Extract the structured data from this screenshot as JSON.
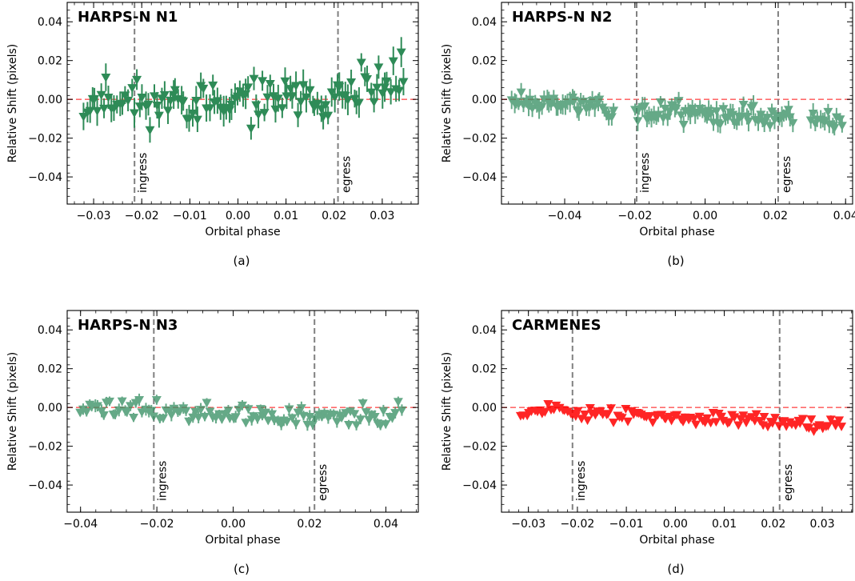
{
  "figure": {
    "captions": [
      "(a)",
      "(b)",
      "(c)",
      "(d)"
    ]
  },
  "chart_data": [
    {
      "type": "scatter",
      "title": "HARPS-N N1",
      "xlabel": "Orbital phase",
      "ylabel": "Relative Shift (pixels)",
      "xlim": [
        -0.0355,
        0.0375
      ],
      "ylim": [
        -0.054,
        0.05
      ],
      "xticks": [
        -0.03,
        -0.02,
        -0.01,
        0.0,
        0.01,
        0.02,
        0.03
      ],
      "xtick_labels": [
        "−0.03",
        "−0.02",
        "−0.01",
        "0.00",
        "0.01",
        "0.02",
        "0.03"
      ],
      "yticks": [
        -0.04,
        -0.02,
        0.0,
        0.02,
        0.04
      ],
      "ytick_labels": [
        "−0.04",
        "−0.02",
        "0.00",
        "0.02",
        "0.04"
      ],
      "ingress_phase": -0.0215,
      "egress_phase": 0.0208,
      "ingress_label": "ingress",
      "egress_label": "egress",
      "marker_color": "#2e8b57",
      "marker_opacity": 1.0,
      "reference_line_color": "#ff6b6b",
      "x_range": [
        -0.032,
        0.0345
      ],
      "n_points": 116,
      "trend": [
        [
          -0.032,
          0.0
        ],
        [
          0.0,
          -0.002
        ],
        [
          0.024,
          0.002
        ],
        [
          0.0345,
          0.01
        ]
      ],
      "scatter_amp": 0.0085,
      "err": 0.006,
      "seed": 11
    },
    {
      "type": "scatter",
      "title": "HARPS-N N2",
      "xlabel": "Orbital phase",
      "ylabel": "Relative Shift (pixels)",
      "xlim": [
        -0.058,
        0.042
      ],
      "ylim": [
        -0.054,
        0.05
      ],
      "xticks": [
        -0.04,
        -0.02,
        0.0,
        0.02,
        0.04
      ],
      "xtick_labels": [
        "−0.04",
        "−0.02",
        "0.00",
        "0.02",
        "0.04"
      ],
      "yticks": [
        -0.04,
        -0.02,
        0.0,
        0.02,
        0.04
      ],
      "ytick_labels": [
        "−0.04",
        "−0.02",
        "0.00",
        "0.02",
        "0.04"
      ],
      "ingress_phase": -0.0195,
      "egress_phase": 0.0208,
      "ingress_label": "ingress",
      "egress_label": "egress",
      "marker_color": "#3a9166",
      "marker_opacity": 0.78,
      "reference_line_color": "#ff6b6b",
      "segments": [
        [
          -0.055,
          -0.026
        ],
        [
          -0.02,
          0.025
        ],
        [
          0.03,
          0.039
        ]
      ],
      "n_points": 128,
      "trend": [
        [
          -0.055,
          0.0
        ],
        [
          -0.02,
          -0.005
        ],
        [
          0.025,
          -0.01
        ],
        [
          0.039,
          -0.012
        ]
      ],
      "scatter_amp": 0.0045,
      "err": 0.004,
      "seed": 23
    },
    {
      "type": "scatter",
      "title": "HARPS-N N3",
      "xlabel": "Orbital phase",
      "ylabel": "Relative Shift (pixels)",
      "xlim": [
        -0.0435,
        0.0485
      ],
      "ylim": [
        -0.054,
        0.05
      ],
      "xticks": [
        -0.04,
        -0.02,
        0.0,
        0.02,
        0.04
      ],
      "xtick_labels": [
        "−0.04",
        "−0.02",
        "0.00",
        "0.02",
        "0.04"
      ],
      "yticks": [
        -0.04,
        -0.02,
        0.0,
        0.02,
        0.04
      ],
      "ytick_labels": [
        "−0.04",
        "−0.02",
        "0.00",
        "0.02",
        "0.04"
      ],
      "ingress_phase": -0.0208,
      "egress_phase": 0.0213,
      "ingress_label": "ingress",
      "egress_label": "egress",
      "marker_color": "#3a9166",
      "marker_opacity": 0.78,
      "reference_line_color": "#ff6b6b",
      "x_range": [
        -0.04,
        0.044
      ],
      "n_points": 110,
      "trend": [
        [
          -0.04,
          0.001
        ],
        [
          0.0,
          -0.004
        ],
        [
          0.02,
          -0.006
        ],
        [
          0.044,
          -0.002
        ]
      ],
      "scatter_amp": 0.004,
      "err": 0.0025,
      "seed": 37
    },
    {
      "type": "scatter",
      "title": "CARMENES",
      "xlabel": "Orbital phase",
      "ylabel": "Relative Shift (pixels)",
      "xlim": [
        -0.0355,
        0.0362
      ],
      "ylim": [
        -0.054,
        0.05
      ],
      "xticks": [
        -0.03,
        -0.02,
        -0.01,
        0.0,
        0.01,
        0.02,
        0.03
      ],
      "xtick_labels": [
        "−0.03",
        "−0.02",
        "−0.01",
        "0.00",
        "0.01",
        "0.02",
        "0.03"
      ],
      "yticks": [
        -0.04,
        -0.02,
        0.0,
        0.02,
        0.04
      ],
      "ytick_labels": [
        "−0.04",
        "−0.02",
        "0.00",
        "0.02",
        "0.04"
      ],
      "ingress_phase": -0.021,
      "egress_phase": 0.0213,
      "ingress_label": "ingress",
      "egress_label": "egress",
      "marker_color": "#ff0000",
      "marker_opacity": 0.85,
      "reference_line_color": "#ff6b6b",
      "x_range": [
        -0.0315,
        0.034
      ],
      "n_points": 118,
      "trend": [
        [
          -0.0315,
          -0.002
        ],
        [
          -0.025,
          0.0
        ],
        [
          -0.02,
          -0.003
        ],
        [
          0.0,
          -0.005
        ],
        [
          0.034,
          -0.009
        ]
      ],
      "scatter_amp": 0.0025,
      "err": 0.0015,
      "seed": 53
    }
  ]
}
